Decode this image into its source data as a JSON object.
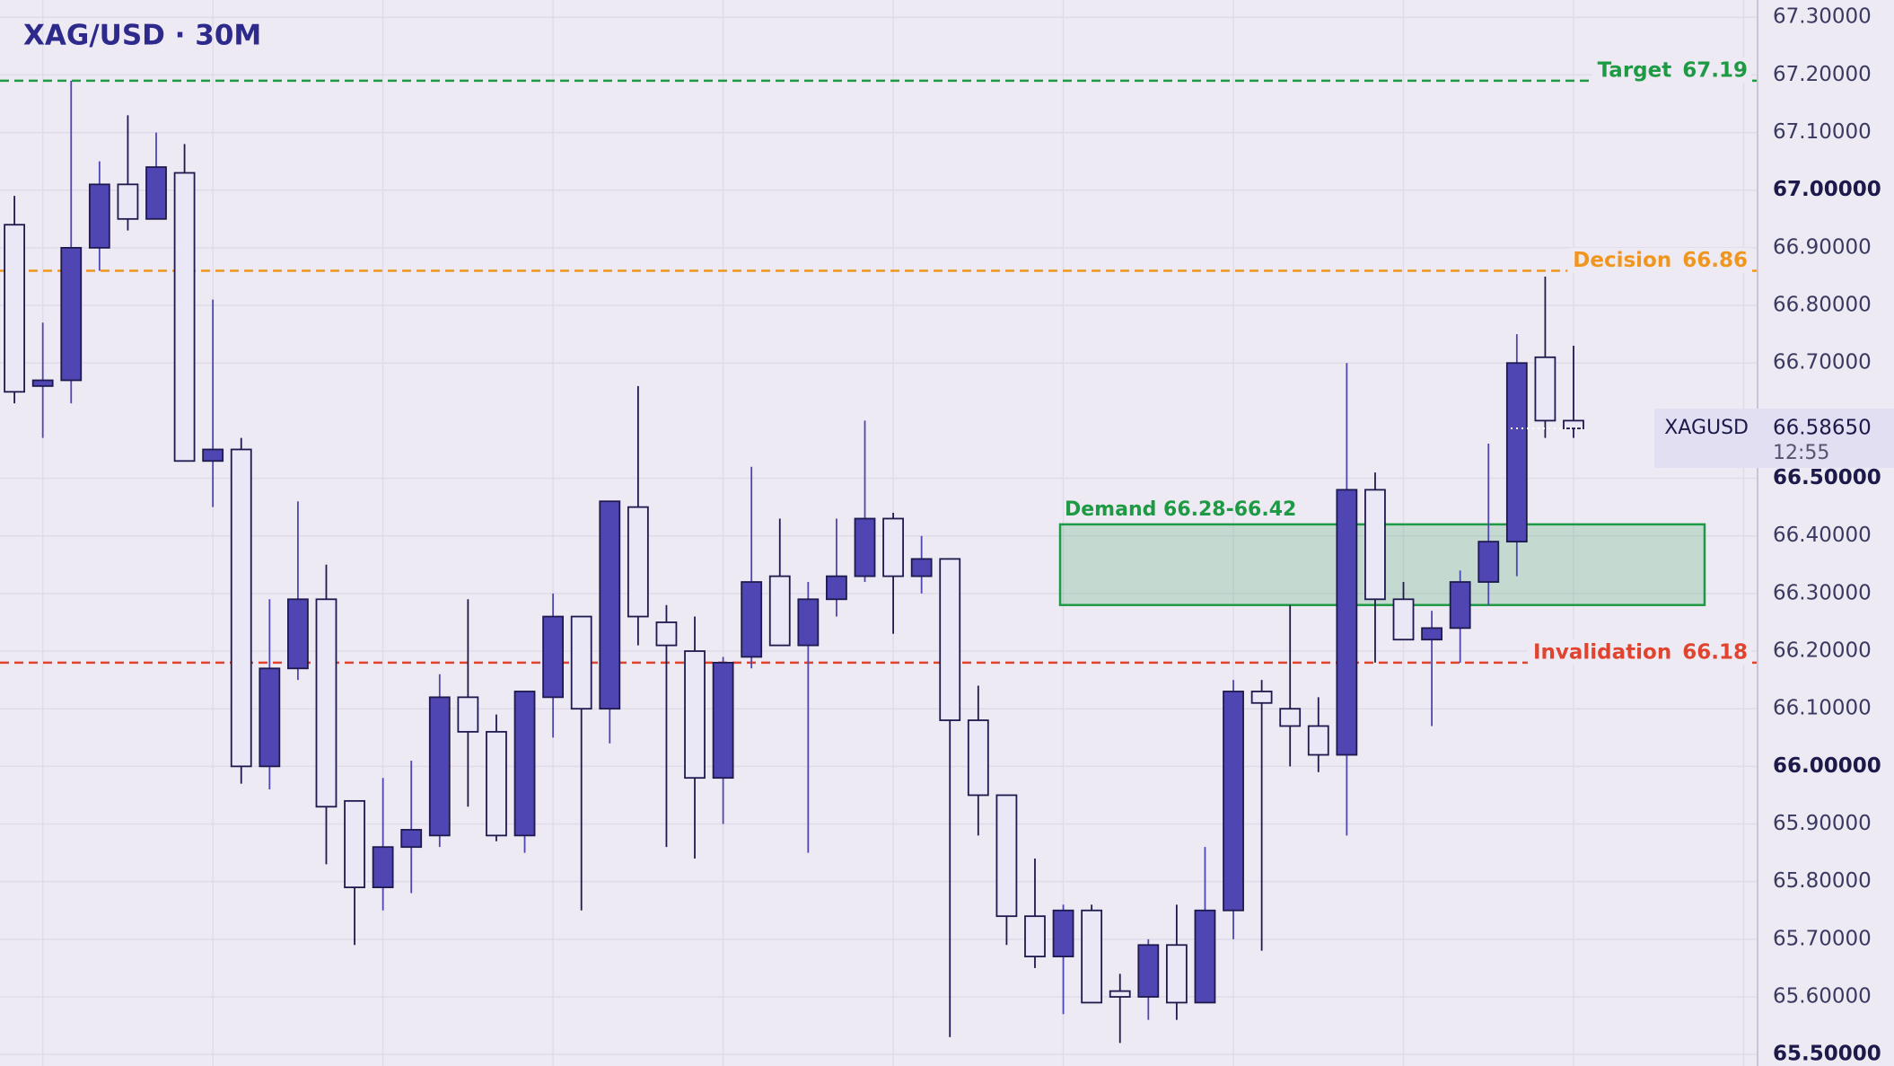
{
  "chart_data": {
    "type": "candlestick",
    "title": "XAG/USD · 30M",
    "series": [
      {
        "name": "XAGUSD",
        "up_color": "#4f46b4",
        "down_color": "#eae7f7",
        "outline_color": "#1e1a4e",
        "open": [
          66.94,
          66.66,
          66.67,
          66.9,
          67.01,
          66.95,
          67.03,
          66.53,
          66.55,
          66.0,
          66.17,
          66.29,
          65.94,
          65.79,
          65.86,
          65.88,
          66.12,
          66.06,
          65.88,
          66.12,
          66.26,
          66.1,
          66.45,
          66.25,
          66.2,
          65.98,
          66.19,
          66.33,
          66.21,
          66.29,
          66.33,
          66.43,
          66.33,
          66.36,
          66.08,
          65.95,
          65.74,
          65.67,
          65.75,
          65.61,
          65.6,
          65.69,
          65.59,
          65.75,
          66.13,
          66.1,
          66.07,
          66.02,
          66.48,
          66.29,
          66.22,
          66.24,
          66.32,
          66.39,
          66.71,
          66.6
        ],
        "high": [
          66.99,
          66.77,
          67.19,
          67.05,
          67.13,
          67.1,
          67.08,
          66.81,
          66.57,
          66.29,
          66.46,
          66.35,
          65.94,
          65.98,
          66.01,
          66.16,
          66.29,
          66.09,
          66.13,
          66.3,
          66.26,
          66.46,
          66.66,
          66.28,
          66.26,
          66.19,
          66.52,
          66.43,
          66.32,
          66.43,
          66.6,
          66.44,
          66.4,
          66.36,
          66.14,
          65.95,
          65.84,
          65.76,
          65.76,
          65.64,
          65.7,
          65.76,
          65.86,
          66.15,
          66.15,
          66.28,
          66.12,
          66.7,
          66.51,
          66.32,
          66.27,
          66.34,
          66.56,
          66.75,
          66.85,
          66.73
        ],
        "low": [
          66.63,
          66.57,
          66.63,
          66.86,
          66.93,
          66.95,
          66.53,
          66.45,
          65.97,
          65.96,
          66.15,
          65.83,
          65.69,
          65.75,
          65.78,
          65.86,
          65.93,
          65.87,
          65.85,
          66.05,
          65.75,
          66.04,
          66.21,
          65.86,
          65.84,
          65.9,
          66.17,
          66.21,
          65.85,
          66.26,
          66.32,
          66.23,
          66.3,
          65.53,
          65.88,
          65.69,
          65.65,
          65.57,
          65.59,
          65.52,
          65.56,
          65.56,
          65.59,
          65.7,
          65.68,
          66.0,
          65.99,
          65.88,
          66.18,
          66.23,
          66.07,
          66.18,
          66.28,
          66.33,
          66.57,
          66.57
        ],
        "close": [
          66.65,
          66.67,
          66.9,
          67.01,
          66.95,
          67.04,
          66.53,
          66.55,
          66.0,
          66.17,
          66.29,
          65.93,
          65.79,
          65.86,
          65.89,
          66.12,
          66.06,
          65.88,
          66.13,
          66.26,
          66.1,
          66.46,
          66.26,
          66.21,
          65.98,
          66.18,
          66.32,
          66.21,
          66.29,
          66.33,
          66.43,
          66.33,
          66.36,
          66.08,
          65.95,
          65.74,
          65.67,
          65.75,
          65.59,
          65.6,
          65.69,
          65.59,
          65.75,
          66.13,
          66.11,
          66.07,
          66.02,
          66.48,
          66.29,
          66.22,
          66.24,
          66.32,
          66.39,
          66.7,
          66.6,
          66.5865
        ]
      }
    ],
    "ylim": [
      65.48,
      67.33
    ],
    "yticks": [
      {
        "value": 67.3,
        "label": "67.30000"
      },
      {
        "value": 67.2,
        "label": "67.20000"
      },
      {
        "value": 67.1,
        "label": "67.10000"
      },
      {
        "value": 67.0,
        "label": "67.00000"
      },
      {
        "value": 66.9,
        "label": "66.90000"
      },
      {
        "value": 66.8,
        "label": "66.80000"
      },
      {
        "value": 66.7,
        "label": "66.70000"
      },
      {
        "value": 66.5,
        "label": "66.50000"
      },
      {
        "value": 66.4,
        "label": "66.40000"
      },
      {
        "value": 66.3,
        "label": "66.30000"
      },
      {
        "value": 66.2,
        "label": "66.20000"
      },
      {
        "value": 66.1,
        "label": "66.10000"
      },
      {
        "value": 66.0,
        "label": "66.00000"
      },
      {
        "value": 65.9,
        "label": "65.90000"
      },
      {
        "value": 65.8,
        "label": "65.80000"
      },
      {
        "value": 65.7,
        "label": "65.70000"
      },
      {
        "value": 65.6,
        "label": "65.60000"
      },
      {
        "value": 65.5,
        "label": "65.50000"
      }
    ],
    "grid": true,
    "levels": [
      {
        "name": "Target",
        "value": 67.19,
        "color": "#1e9a45"
      },
      {
        "name": "Decision",
        "value": 66.86,
        "color": "#f0961e"
      },
      {
        "name": "Invalidation",
        "value": 66.18,
        "color": "#e0442e"
      }
    ],
    "zones": [
      {
        "label": "Demand 66.28-66.42",
        "low": 66.28,
        "high": 66.42,
        "color": "#1e9a45"
      }
    ],
    "last_price": {
      "value": 66.5865,
      "label": "66.58650"
    },
    "countdown": "12:55"
  }
}
